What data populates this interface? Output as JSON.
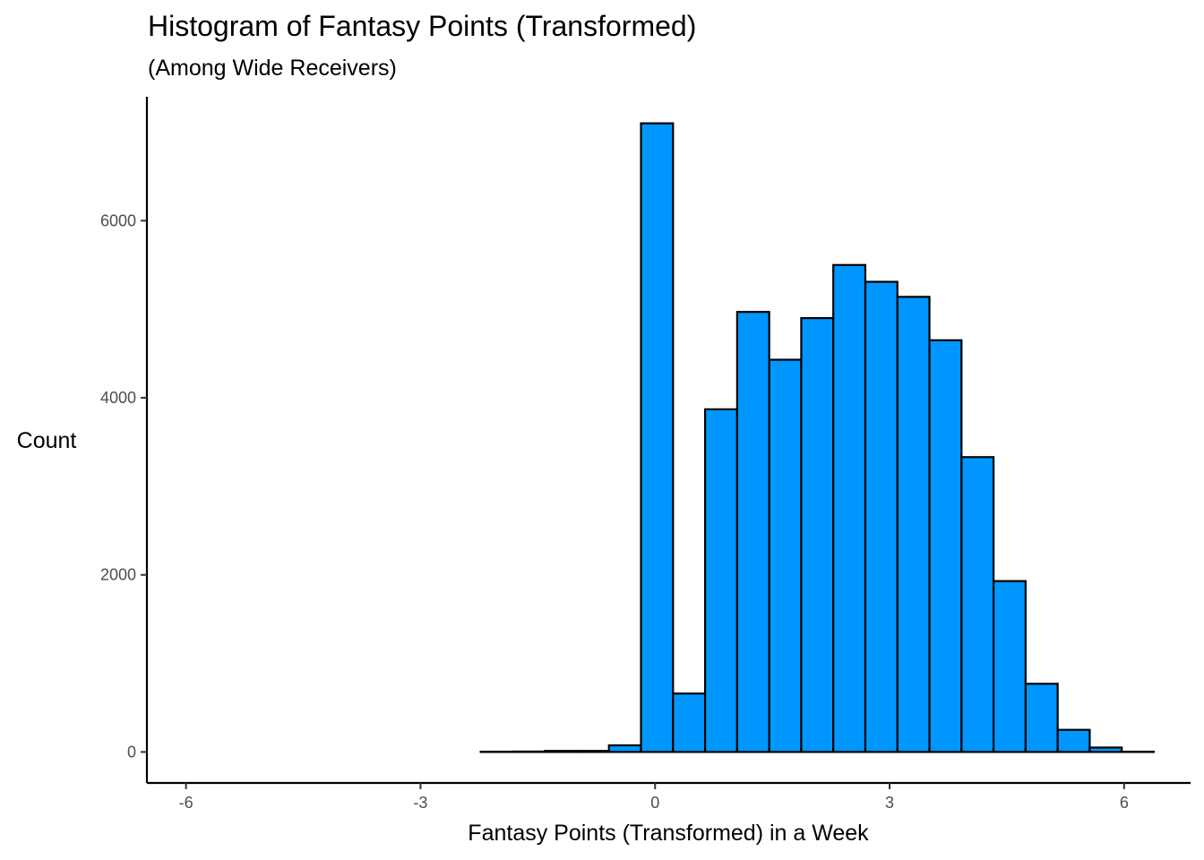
{
  "chart_data": {
    "type": "bar",
    "title": "Histogram of Fantasy Points (Transformed)",
    "subtitle": "(Among Wide Receivers)",
    "xlabel": "Fantasy Points (Transformed) in a Week",
    "ylabel": "Count",
    "xlim": [
      -6.5,
      6.85
    ],
    "ylim": [
      -350,
      7400
    ],
    "x_ticks": [
      -6,
      -3,
      0,
      3,
      6
    ],
    "x_tick_labels": [
      "-6",
      "-3",
      "0",
      "3",
      "6"
    ],
    "y_ticks": [
      0,
      2000,
      4000,
      6000
    ],
    "y_tick_labels": [
      "0",
      "2000",
      "4000",
      "6000"
    ],
    "grid": false,
    "bar_fill": "#0096ff",
    "bar_stroke": "#000000",
    "bin_width": 0.41,
    "bins": [
      {
        "x0": -5.92,
        "x1": -5.51,
        "count": 0
      },
      {
        "x0": -5.51,
        "x1": -5.1,
        "count": 0
      },
      {
        "x0": -5.1,
        "x1": -4.69,
        "count": 0
      },
      {
        "x0": -4.69,
        "x1": -4.28,
        "count": 0
      },
      {
        "x0": -4.28,
        "x1": -3.87,
        "count": 0
      },
      {
        "x0": -3.87,
        "x1": -3.46,
        "count": 0
      },
      {
        "x0": -3.46,
        "x1": -3.05,
        "count": 0
      },
      {
        "x0": -3.05,
        "x1": -2.64,
        "count": 0
      },
      {
        "x0": -2.64,
        "x1": -2.23,
        "count": 0
      },
      {
        "x0": -2.23,
        "x1": -1.82,
        "count": 3
      },
      {
        "x0": -1.82,
        "x1": -1.41,
        "count": 5
      },
      {
        "x0": -1.41,
        "x1": -1.0,
        "count": 12
      },
      {
        "x0": -1.0,
        "x1": -0.59,
        "count": 12
      },
      {
        "x0": -0.59,
        "x1": -0.18,
        "count": 75
      },
      {
        "x0": -0.18,
        "x1": 0.23,
        "count": 7100
      },
      {
        "x0": 0.23,
        "x1": 0.64,
        "count": 660
      },
      {
        "x0": 0.64,
        "x1": 1.05,
        "count": 3870
      },
      {
        "x0": 1.05,
        "x1": 1.46,
        "count": 4970
      },
      {
        "x0": 1.46,
        "x1": 1.87,
        "count": 4430
      },
      {
        "x0": 1.87,
        "x1": 2.28,
        "count": 4900
      },
      {
        "x0": 2.28,
        "x1": 2.69,
        "count": 5500
      },
      {
        "x0": 2.69,
        "x1": 3.1,
        "count": 5310
      },
      {
        "x0": 3.1,
        "x1": 3.51,
        "count": 5140
      },
      {
        "x0": 3.51,
        "x1": 3.92,
        "count": 4650
      },
      {
        "x0": 3.92,
        "x1": 4.33,
        "count": 3330
      },
      {
        "x0": 4.33,
        "x1": 4.74,
        "count": 1930
      },
      {
        "x0": 4.74,
        "x1": 5.15,
        "count": 770
      },
      {
        "x0": 5.15,
        "x1": 5.56,
        "count": 250
      },
      {
        "x0": 5.56,
        "x1": 5.97,
        "count": 50
      },
      {
        "x0": 5.97,
        "x1": 6.38,
        "count": 3
      }
    ]
  }
}
